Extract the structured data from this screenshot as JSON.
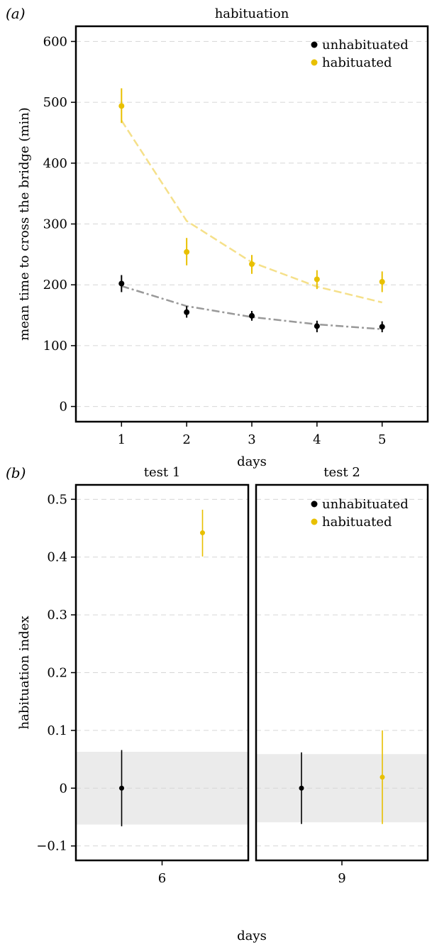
{
  "chart_data": [
    {
      "type": "scatter",
      "panel_label": "(a)",
      "title": "habituation",
      "xlabel": "days",
      "ylabel": "mean time to cross the bridge (min)",
      "x_ticks": [
        "1",
        "2",
        "3",
        "4",
        "5"
      ],
      "y_ticks": [
        "0",
        "100",
        "200",
        "300",
        "400",
        "500",
        "600"
      ],
      "xlim": [
        0.3,
        5.7
      ],
      "ylim": [
        -25,
        625
      ],
      "grid": true,
      "legend_position": "top-right",
      "series": [
        {
          "name": "unhabituated",
          "color": "#000000",
          "fit_color": "#999999",
          "points": [
            {
              "x": 1,
              "y": 202,
              "lo": 188,
              "hi": 216
            },
            {
              "x": 2,
              "y": 155,
              "lo": 146,
              "hi": 165
            },
            {
              "x": 3,
              "y": 149,
              "lo": 141,
              "hi": 157
            },
            {
              "x": 4,
              "y": 132,
              "lo": 122,
              "hi": 141
            },
            {
              "x": 5,
              "y": 131,
              "lo": 122,
              "hi": 140
            }
          ],
          "fit": [
            {
              "x": 1,
              "y": 198
            },
            {
              "x": 2,
              "y": 165
            },
            {
              "x": 3,
              "y": 147
            },
            {
              "x": 4,
              "y": 135
            },
            {
              "x": 5,
              "y": 127
            }
          ]
        },
        {
          "name": "habituated",
          "color": "#E8C000",
          "fit_color": "#F5E08A",
          "points": [
            {
              "x": 1,
              "y": 494,
              "lo": 466,
              "hi": 523
            },
            {
              "x": 2,
              "y": 254,
              "lo": 232,
              "hi": 277
            },
            {
              "x": 3,
              "y": 234,
              "lo": 218,
              "hi": 249
            },
            {
              "x": 4,
              "y": 209,
              "lo": 193,
              "hi": 224
            },
            {
              "x": 5,
              "y": 205,
              "lo": 188,
              "hi": 222
            }
          ],
          "fit": [
            {
              "x": 1,
              "y": 470
            },
            {
              "x": 2,
              "y": 305
            },
            {
              "x": 3,
              "y": 237
            },
            {
              "x": 4,
              "y": 197
            },
            {
              "x": 5,
              "y": 171
            }
          ]
        }
      ]
    },
    {
      "type": "scatter",
      "panel_label": "(b)",
      "xlabel": "days",
      "ylabel": "habituation index",
      "y_ticks": [
        "−0.1",
        "0",
        "0.1",
        "0.2",
        "0.3",
        "0.4",
        "0.5"
      ],
      "ylim": [
        -0.125,
        0.525
      ],
      "grid": true,
      "legend_position": "top-right",
      "legend": [
        {
          "name": "unhabituated",
          "color": "#000000"
        },
        {
          "name": "habituated",
          "color": "#E8C000"
        }
      ],
      "panels": [
        {
          "title": "test 1",
          "x_tick": "6",
          "band": [
            -0.063,
            0.063
          ],
          "points": [
            {
              "series": "unhabituated",
              "color": "#000000",
              "offset": -1,
              "y": 0.0,
              "lo": -0.066,
              "hi": 0.066
            },
            {
              "series": "habituated",
              "color": "#E8C000",
              "offset": 1,
              "y": 0.442,
              "lo": 0.401,
              "hi": 0.482
            }
          ]
        },
        {
          "title": "test 2",
          "x_tick": "9",
          "band": [
            -0.059,
            0.059
          ],
          "points": [
            {
              "series": "unhabituated",
              "color": "#000000",
              "offset": -1,
              "y": 0.0,
              "lo": -0.062,
              "hi": 0.062
            },
            {
              "series": "habituated",
              "color": "#E8C000",
              "offset": 1,
              "y": 0.019,
              "lo": -0.062,
              "hi": 0.1
            }
          ]
        }
      ]
    }
  ]
}
